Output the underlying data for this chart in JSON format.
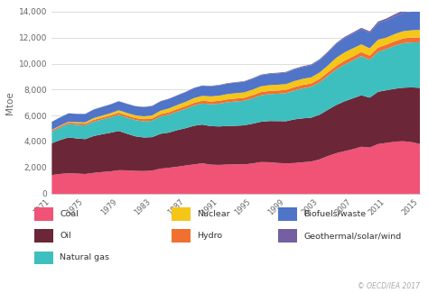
{
  "years": [
    1971,
    1972,
    1973,
    1974,
    1975,
    1976,
    1977,
    1978,
    1979,
    1980,
    1981,
    1982,
    1983,
    1984,
    1985,
    1986,
    1987,
    1988,
    1989,
    1990,
    1991,
    1992,
    1993,
    1994,
    1995,
    1996,
    1997,
    1998,
    1999,
    2000,
    2001,
    2002,
    2003,
    2004,
    2005,
    2006,
    2007,
    2008,
    2009,
    2010,
    2011,
    2012,
    2013,
    2014,
    2015
  ],
  "coal": [
    1449,
    1532,
    1591,
    1560,
    1530,
    1616,
    1680,
    1731,
    1821,
    1809,
    1768,
    1755,
    1791,
    1944,
    2010,
    2088,
    2183,
    2268,
    2355,
    2249,
    2228,
    2260,
    2273,
    2272,
    2342,
    2450,
    2437,
    2380,
    2353,
    2374,
    2435,
    2488,
    2655,
    2911,
    3131,
    3289,
    3439,
    3630,
    3570,
    3836,
    3925,
    4027,
    4051,
    3992,
    3840
  ],
  "oil": [
    2448,
    2617,
    2756,
    2709,
    2686,
    2836,
    2908,
    2975,
    3025,
    2819,
    2663,
    2587,
    2579,
    2685,
    2712,
    2822,
    2877,
    2977,
    2983,
    2967,
    2965,
    2968,
    2973,
    3009,
    3064,
    3103,
    3175,
    3226,
    3244,
    3364,
    3382,
    3380,
    3440,
    3566,
    3714,
    3843,
    3924,
    3967,
    3842,
    4028,
    4059,
    4071,
    4128,
    4211,
    4331
  ],
  "natural_gas": [
    898,
    961,
    1043,
    1047,
    1057,
    1112,
    1143,
    1183,
    1253,
    1244,
    1247,
    1243,
    1261,
    1330,
    1379,
    1432,
    1493,
    1568,
    1625,
    1688,
    1753,
    1829,
    1876,
    1891,
    1958,
    2040,
    2070,
    2108,
    2159,
    2230,
    2310,
    2381,
    2490,
    2612,
    2733,
    2837,
    2922,
    3017,
    2924,
    3077,
    3174,
    3316,
    3430,
    3462,
    3508
  ],
  "nuclear": [
    29,
    42,
    54,
    75,
    106,
    134,
    156,
    170,
    185,
    198,
    209,
    220,
    239,
    270,
    299,
    313,
    340,
    369,
    383,
    393,
    403,
    404,
    411,
    415,
    425,
    445,
    447,
    447,
    443,
    462,
    472,
    468,
    495,
    527,
    630,
    637,
    624,
    598,
    563,
    603,
    545,
    557,
    560,
    554,
    583
  ],
  "hydro": [
    104,
    109,
    118,
    128,
    130,
    138,
    142,
    151,
    157,
    162,
    162,
    171,
    177,
    181,
    185,
    196,
    197,
    200,
    210,
    214,
    220,
    225,
    225,
    231,
    243,
    249,
    248,
    249,
    256,
    263,
    264,
    261,
    266,
    277,
    281,
    296,
    307,
    310,
    318,
    333,
    340,
    347,
    365,
    385,
    380
  ],
  "biofuels": [
    621,
    631,
    641,
    640,
    645,
    658,
    667,
    674,
    690,
    694,
    697,
    706,
    716,
    718,
    726,
    729,
    748,
    762,
    770,
    780,
    791,
    808,
    812,
    822,
    838,
    851,
    862,
    873,
    887,
    896,
    912,
    925,
    952,
    993,
    1047,
    1099,
    1121,
    1160,
    1183,
    1264,
    1320,
    1360,
    1406,
    1440,
    1463
  ],
  "geothermal": [
    5,
    6,
    7,
    8,
    9,
    11,
    12,
    14,
    16,
    18,
    19,
    20,
    21,
    22,
    24,
    25,
    27,
    29,
    30,
    32,
    34,
    37,
    39,
    42,
    45,
    48,
    50,
    52,
    55,
    58,
    63,
    67,
    72,
    79,
    87,
    94,
    102,
    112,
    121,
    132,
    150,
    163,
    189,
    211,
    223
  ],
  "colors": {
    "coal": "#f05375",
    "oil": "#6b2737",
    "natural_gas": "#3dbfbf",
    "nuclear": "#f5c518",
    "hydro": "#f07030",
    "biofuels": "#4f74c8",
    "geothermal": "#7460a0"
  },
  "ylabel": "Mtoe",
  "ylim": [
    0,
    14000
  ],
  "yticks": [
    0,
    2000,
    4000,
    6000,
    8000,
    10000,
    12000,
    14000
  ],
  "xticks": [
    1971,
    1975,
    1979,
    1983,
    1987,
    1991,
    1995,
    1999,
    2003,
    2007,
    2011,
    2015
  ],
  "legend_col1": [
    {
      "label": "Coal",
      "color": "#f05375"
    },
    {
      "label": "Oil",
      "color": "#6b2737"
    },
    {
      "label": "Natural gas",
      "color": "#3dbfbf"
    }
  ],
  "legend_col2": [
    {
      "label": "Nuclear",
      "color": "#f5c518"
    },
    {
      "label": "Hydro",
      "color": "#f07030"
    }
  ],
  "legend_col3": [
    {
      "label": "Biofuels/waste",
      "color": "#4f74c8"
    },
    {
      "label": "Geothermal/solar/wind",
      "color": "#7460a0"
    }
  ],
  "footnote": "© OECD/IEA 2017",
  "background_color": "#ffffff",
  "grid_color": "#d0d0d0"
}
